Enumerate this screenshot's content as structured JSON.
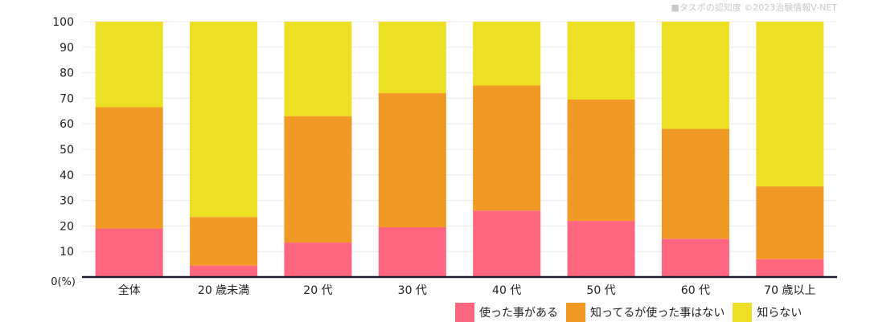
{
  "credit": "■タスポの認知度 ©2023治験情報V-NET",
  "chart_data": {
    "type": "bar",
    "stacked": true,
    "title": "",
    "xlabel": "",
    "ylabel": "",
    "y_unit_label": "0(%)",
    "ylim": [
      0,
      100
    ],
    "yticks": [
      "100",
      "90",
      "80",
      "70",
      "60",
      "50",
      "40",
      "30",
      "20",
      "10"
    ],
    "grid": true,
    "legend_position": "bottom-right",
    "categories": [
      "全体",
      "20 歳未満",
      "20 代",
      "30 代",
      "40 代",
      "50 代",
      "60 代",
      "70 歳以上"
    ],
    "series": [
      {
        "name": "使った事がある",
        "color": "#ff6680",
        "values": [
          19,
          4.5,
          13.5,
          19.5,
          26,
          22,
          15,
          7
        ]
      },
      {
        "name": "知ってるが使った事はない",
        "color": "#f09a25",
        "values": [
          47.5,
          19,
          49.5,
          52.5,
          49,
          47.5,
          43,
          28.5
        ]
      },
      {
        "name": "知らない",
        "color": "#ede024",
        "values": [
          33.5,
          76.5,
          37,
          28,
          25,
          30.5,
          42,
          64.5
        ]
      }
    ]
  }
}
